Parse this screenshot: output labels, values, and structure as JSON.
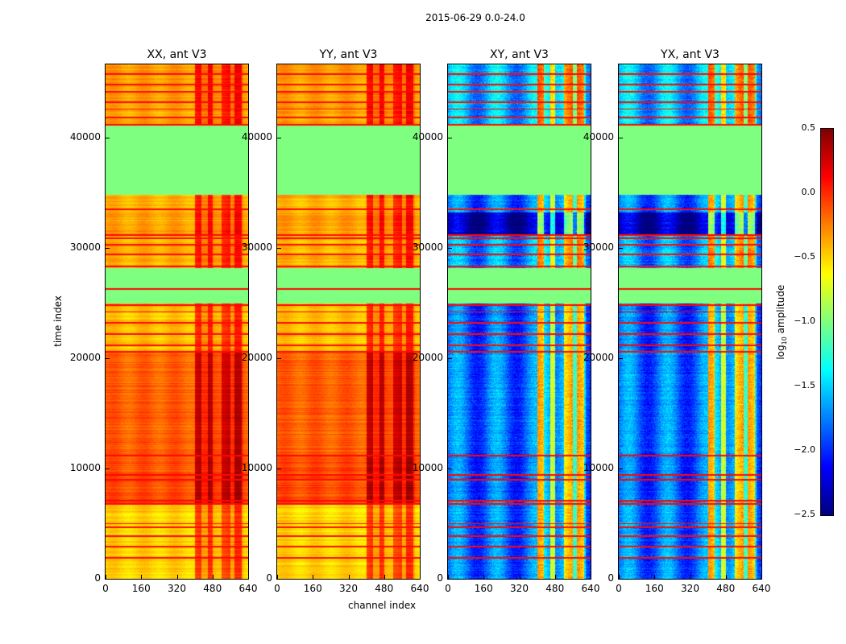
{
  "chart_data": {
    "type": "heatmap",
    "title": "2015-06-29 0.0-24.0",
    "xlabel": "channel index",
    "ylabel": "time index",
    "xlim": [
      0,
      640
    ],
    "ylim": [
      0,
      46650
    ],
    "xticks": [
      0,
      160,
      320,
      480,
      640
    ],
    "yticks": [
      0,
      10000,
      20000,
      30000,
      40000
    ],
    "panels": [
      {
        "title": "XX, ant V3",
        "kind": "parallel"
      },
      {
        "title": "YY, ant V3",
        "kind": "parallel"
      },
      {
        "title": "XY, ant V3",
        "kind": "cross"
      },
      {
        "title": "YX, ant V3",
        "kind": "cross"
      }
    ],
    "colorbar": {
      "label_prefix": "log",
      "label_sub": "10",
      "label_suffix": " amplitude",
      "range": [
        -2.5,
        0.5
      ],
      "ticks": [
        "0.5",
        "0.0",
        "−0.5",
        "−1.0",
        "−1.5",
        "−2.0",
        "−2.5"
      ],
      "tick_values": [
        0.5,
        0.0,
        -0.5,
        -1.0,
        -1.5,
        -2.0,
        -2.5
      ],
      "colormap": "jet"
    },
    "time_segments": [
      {
        "t0": 0,
        "t1": 6800,
        "parallel": -0.5,
        "cross": -1.8
      },
      {
        "t0": 6800,
        "t1": 11300,
        "parallel": -0.1,
        "cross": -1.85
      },
      {
        "t0": 11300,
        "t1": 20500,
        "parallel": -0.15,
        "cross": -1.8
      },
      {
        "t0": 20500,
        "t1": 25000,
        "parallel": -0.45,
        "cross": -1.85
      },
      {
        "t0": 25000,
        "t1": 28200,
        "parallel": -1.0,
        "cross": -1.0,
        "flagged": true
      },
      {
        "t0": 28200,
        "t1": 31200,
        "parallel": -0.4,
        "cross": -1.7
      },
      {
        "t0": 31200,
        "t1": 33200,
        "parallel": -0.35,
        "cross": -2.35
      },
      {
        "t0": 33200,
        "t1": 34800,
        "parallel": -0.4,
        "cross": -1.8
      },
      {
        "t0": 34800,
        "t1": 41200,
        "parallel": -1.0,
        "cross": -1.0,
        "flagged": true
      },
      {
        "t0": 41200,
        "t1": 46650,
        "parallel": -0.35,
        "cross": -1.6
      }
    ],
    "bright_time_lines": [
      1900,
      2900,
      3900,
      4700,
      5000,
      6800,
      7100,
      9000,
      9400,
      11200,
      20600,
      21200,
      22200,
      23200,
      24200,
      24800,
      26300,
      28300,
      29400,
      30300,
      30900,
      31200,
      33500,
      41200,
      41800,
      42600,
      43200,
      44200,
      44800,
      45800
    ],
    "bright_channel_ranges": [
      [
        400,
        430
      ],
      [
        460,
        480
      ],
      [
        520,
        560
      ],
      [
        580,
        610
      ]
    ]
  }
}
